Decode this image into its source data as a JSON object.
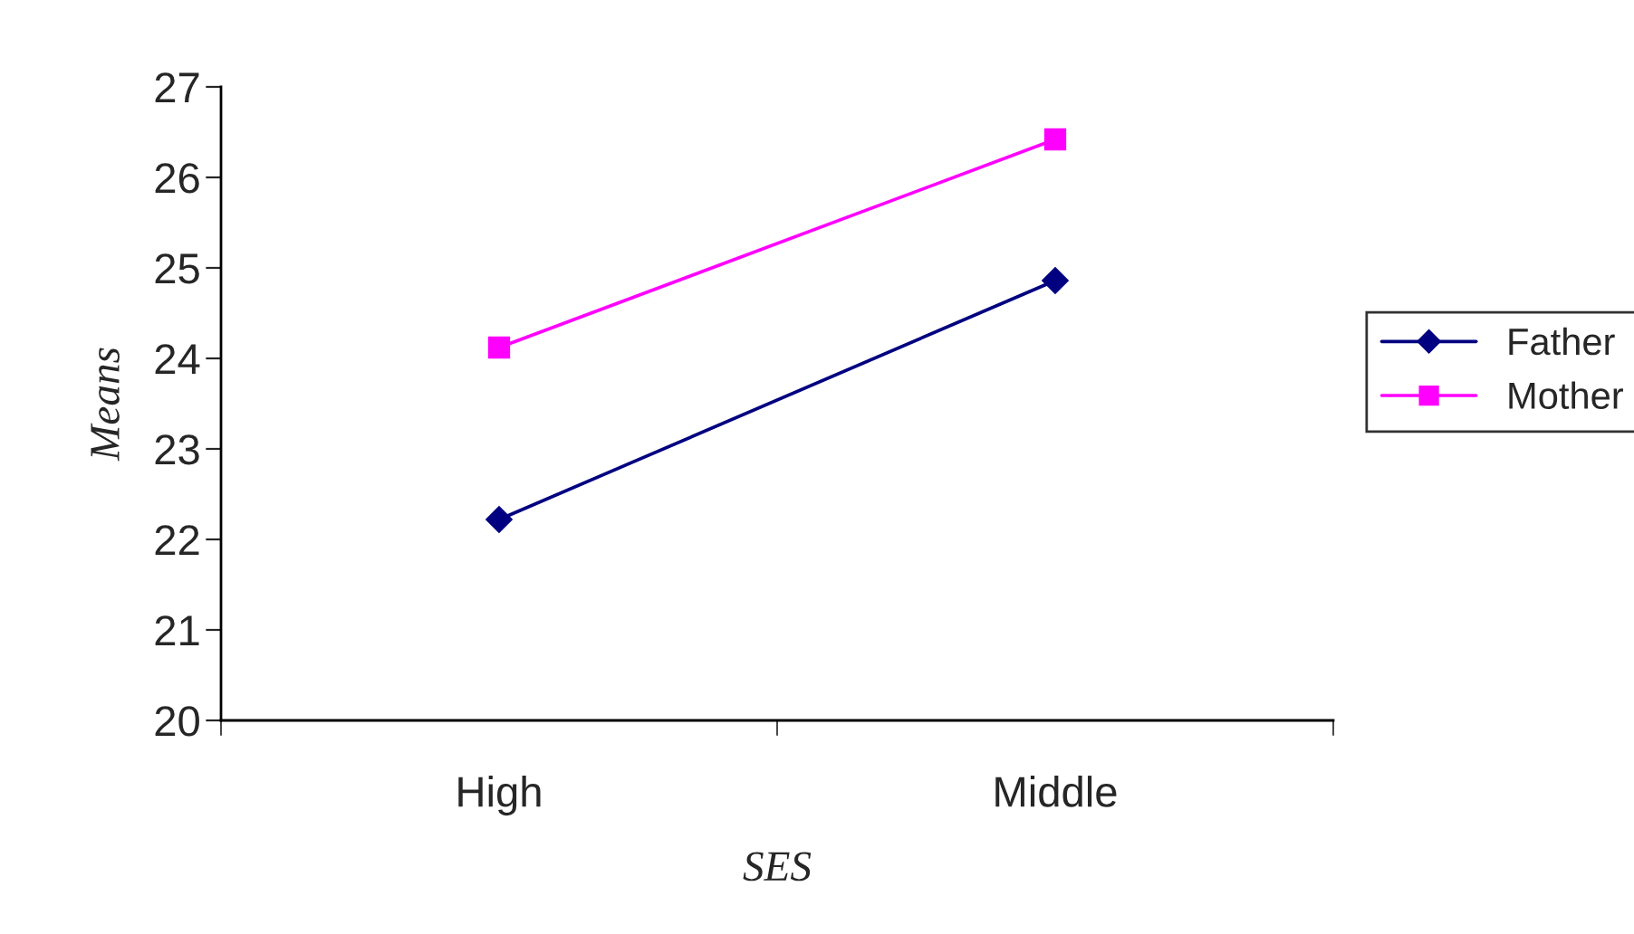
{
  "chart_data": {
    "type": "line",
    "xlabel": "SES",
    "ylabel": "Means",
    "categories": [
      "High",
      "Middle"
    ],
    "series": [
      {
        "name": "Father",
        "color": "#000080",
        "values": [
          22.22,
          24.86
        ],
        "marker": "diamond"
      },
      {
        "name": "Mother",
        "color": "#ff00ff",
        "values": [
          24.12,
          26.42
        ],
        "marker": "square"
      }
    ],
    "ylim": [
      20,
      27
    ],
    "yticks": [
      20,
      21,
      22,
      23,
      24,
      25,
      26,
      27
    ],
    "grid": false,
    "legend": "right",
    "line_style": "solid"
  }
}
